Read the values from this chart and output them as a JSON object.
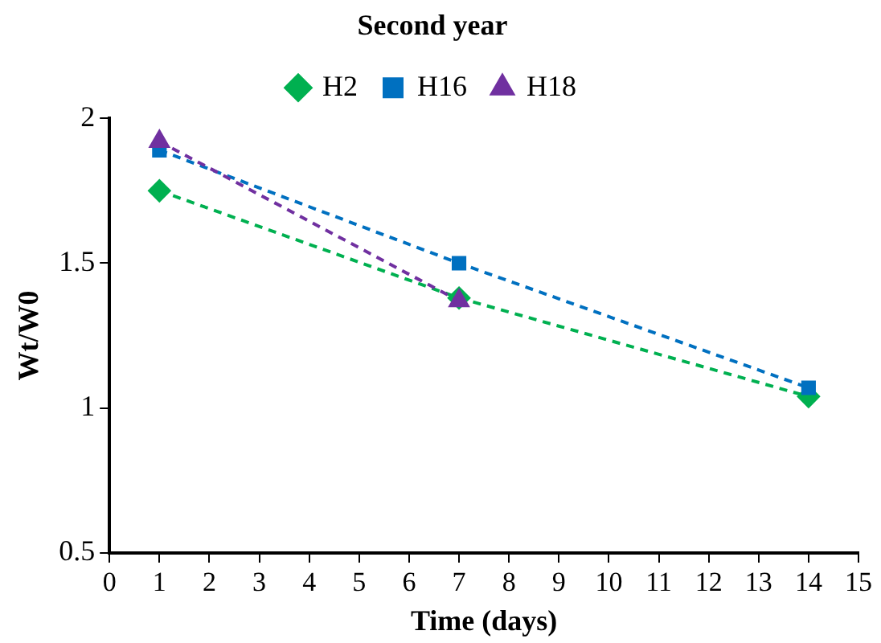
{
  "chart_data": {
    "type": "line",
    "title": "Second year",
    "xlabel": "Time (days)",
    "ylabel": "Wt/W0",
    "xlim": [
      0,
      15
    ],
    "xticks": [
      0,
      1,
      2,
      3,
      4,
      5,
      6,
      7,
      8,
      9,
      10,
      11,
      12,
      13,
      14,
      15
    ],
    "ylim": [
      0.5,
      2
    ],
    "yticks": [
      0.5,
      1,
      1.5,
      2
    ],
    "grid": false,
    "legend": "top",
    "line_style": "dashed",
    "series": [
      {
        "name": "H2",
        "color": "#00b050",
        "marker": "diamond",
        "x": [
          1,
          7,
          14
        ],
        "values": [
          1.75,
          1.38,
          1.04
        ]
      },
      {
        "name": "H16",
        "color": "#0070c0",
        "marker": "square",
        "x": [
          1,
          7,
          14
        ],
        "values": [
          1.89,
          1.5,
          1.07
        ]
      },
      {
        "name": "H18",
        "color": "#7030a0",
        "marker": "triangle",
        "x": [
          1,
          7
        ],
        "values": [
          1.92,
          1.37
        ]
      }
    ]
  }
}
